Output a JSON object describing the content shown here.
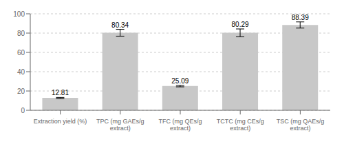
{
  "chart_data": {
    "type": "bar",
    "categories": [
      "Extraction yield (%)",
      "TPC (mg GAEs/g\nextract)",
      "TFC (mg QEs/g\nextract)",
      "TCTC (mg CEs/g\nextract)",
      "TSC (mg QAEs/g\nextract)"
    ],
    "values": [
      12.81,
      80.34,
      25.09,
      80.29,
      88.39
    ],
    "errors": [
      0.5,
      3.5,
      0.8,
      4.0,
      3.2
    ],
    "color": "#c8c8c8",
    "ylim": [
      0,
      100
    ],
    "yticks": [
      0,
      20,
      40,
      60,
      80,
      100
    ],
    "grid": true,
    "data_labels": true
  }
}
